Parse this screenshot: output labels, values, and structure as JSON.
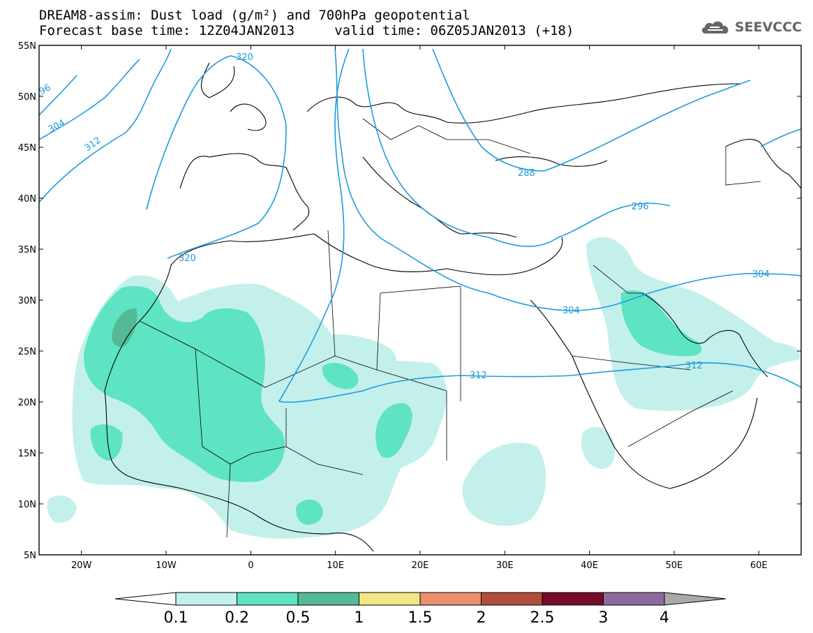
{
  "header": {
    "line1": "DREAM8-assim: Dust load (g/m²) and 700hPa geopotential",
    "line2": "Forecast base time: 12Z04JAN2013     valid time: 06Z05JAN2013 (+18)",
    "brand": "SEEVCCC",
    "brand_icon": "cloud-logo-icon"
  },
  "axes": {
    "lat_labels": [
      "55N",
      "50N",
      "45N",
      "40N",
      "35N",
      "30N",
      "25N",
      "20N",
      "15N",
      "10N",
      "5N"
    ],
    "lon_labels": [
      "20W",
      "10W",
      "0",
      "10E",
      "20E",
      "30E",
      "40E",
      "50E",
      "60E"
    ]
  },
  "contours": {
    "color": "#1e9bdc",
    "labels": [
      "296",
      "304",
      "312",
      "320",
      "288",
      "296",
      "304",
      "304",
      "312",
      "312"
    ]
  },
  "colorbar": {
    "labels": [
      "0.1",
      "0.2",
      "0.5",
      "1",
      "1.5",
      "2",
      "2.5",
      "3",
      "4"
    ],
    "colors": [
      "#c4f0ec",
      "#5ee3c3",
      "#54b996",
      "#f0e784",
      "#eb8f6d",
      "#b04d3c",
      "#780b2b",
      "#8d6a9c",
      "#a9a9a9"
    ],
    "under_color": "#ffffff"
  },
  "colors": {
    "dust_01": "#c4f0ec",
    "dust_02": "#5ee3c3",
    "dust_05": "#54b996",
    "contour": "#1e9bdc",
    "coast": "#000000"
  }
}
